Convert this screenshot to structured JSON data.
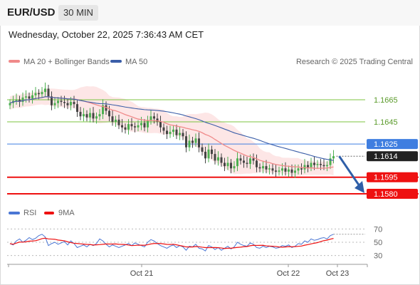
{
  "header": {
    "pair": "EUR/USD",
    "timeframe": "30 MIN",
    "timestamp": "Wednesday, October 22, 2025 7:36:43 AM CET"
  },
  "legend": {
    "ma20": "MA 20 + Bollinger Bands",
    "ma50": "MA 50",
    "credit": "Research © 2025 Trading Central"
  },
  "rsi_legend": {
    "rsi": "RSI",
    "ma9": "9MA"
  },
  "colors": {
    "resistance": "#7cc442",
    "pivot": "#3f7ee0",
    "support": "#ee1111",
    "bull": "#4caf50",
    "bear": "#444444",
    "ma20": "#f08a8a",
    "ma50": "#3b5ea8",
    "band": "#fde2e2"
  },
  "chart_data": {
    "type": "candlestick",
    "price_range": [
      1.1571,
      1.1683
    ],
    "x_ticks": [
      "Oct 21",
      "Oct 22",
      "Oct 23"
    ],
    "levels": [
      {
        "label": "1.1665",
        "value": 1.1665,
        "kind": "resistance"
      },
      {
        "label": "1.1645",
        "value": 1.1645,
        "kind": "resistance"
      },
      {
        "label": "1.1625",
        "value": 1.1625,
        "kind": "pivot"
      },
      {
        "label": "1.1614",
        "value": 1.1614,
        "kind": "last"
      },
      {
        "label": "1.1595",
        "value": 1.1595,
        "kind": "support"
      },
      {
        "label": "1.1580",
        "value": 1.158,
        "kind": "support"
      }
    ],
    "closes": [
      1.1662,
      1.1664,
      1.1665,
      1.1663,
      1.1667,
      1.1668,
      1.1666,
      1.1669,
      1.1671,
      1.167,
      1.1672,
      1.1675,
      1.1668,
      1.166,
      1.1662,
      1.1664,
      1.1663,
      1.1662,
      1.166,
      1.1663,
      1.1661,
      1.1654,
      1.165,
      1.1652,
      1.1649,
      1.1653,
      1.1648,
      1.165,
      1.1652,
      1.166,
      1.1655,
      1.165,
      1.1645,
      1.1647,
      1.1642,
      1.164,
      1.1638,
      1.1643,
      1.1641,
      1.164,
      1.1642,
      1.1644,
      1.164,
      1.1646,
      1.165,
      1.1648,
      1.1645,
      1.164,
      1.1637,
      1.1634,
      1.1636,
      1.1638,
      1.1633,
      1.1635,
      1.1632,
      1.1622,
      1.1628,
      1.1626,
      1.163,
      1.1622,
      1.1618,
      1.1612,
      1.162,
      1.1616,
      1.161,
      1.1613,
      1.1608,
      1.1605,
      1.1608,
      1.1603,
      1.1605,
      1.1612,
      1.161,
      1.1608,
      1.1607,
      1.1612,
      1.161,
      1.1604,
      1.1603,
      1.1605,
      1.1602,
      1.1603,
      1.1601,
      1.16,
      1.1601,
      1.1603,
      1.16,
      1.1602,
      1.1599,
      1.1601,
      1.1603,
      1.1602,
      1.1606,
      1.1604,
      1.1608,
      1.1606,
      1.1607,
      1.1606,
      1.1605,
      1.1606,
      1.1612,
      1.1614
    ],
    "rsi": {
      "ticks": [
        70,
        50,
        30
      ],
      "range": [
        20,
        80
      ],
      "last": 62,
      "values": [
        48,
        46,
        52,
        55,
        50,
        53,
        57,
        54,
        56,
        60,
        62,
        58,
        45,
        48,
        50,
        47,
        49,
        51,
        46,
        52,
        48,
        42,
        44,
        46,
        43,
        47,
        45,
        48,
        55,
        52,
        47,
        43,
        46,
        44,
        42,
        44,
        46,
        48,
        45,
        49,
        47,
        45,
        43,
        50,
        54,
        52,
        48,
        45,
        43,
        41,
        44,
        46,
        42,
        45,
        43,
        38,
        44,
        43,
        47,
        41,
        40,
        37,
        45,
        43,
        39,
        42,
        38,
        41,
        44,
        40,
        43,
        50,
        47,
        45,
        44,
        49,
        47,
        42,
        41,
        44,
        42,
        44,
        43,
        41,
        42,
        45,
        44,
        46,
        42,
        44,
        48,
        47,
        52,
        50,
        55,
        53,
        54,
        56,
        57,
        55,
        60,
        62
      ]
    }
  }
}
